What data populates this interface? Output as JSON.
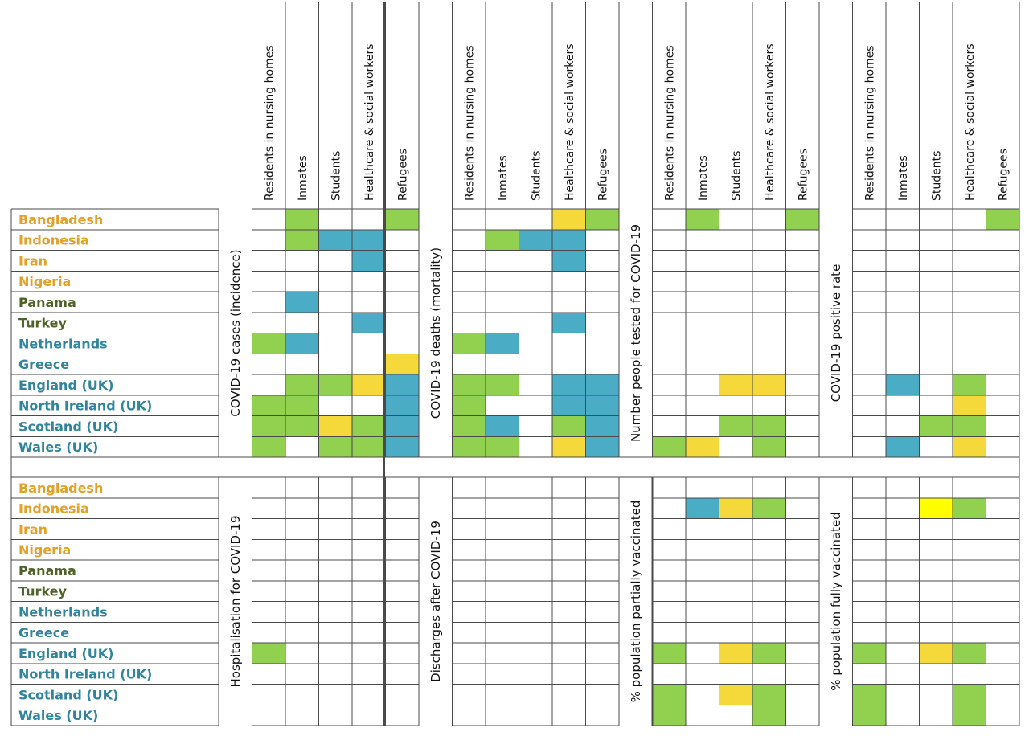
{
  "colors": {
    "green": "#92d050",
    "blue": "#4bacc6",
    "yellow": "#f5d93b",
    "bright_yellow": "#ffff00",
    "orange_text": "#e2a12a",
    "darkgreen_text": "#4f6228",
    "teal_text": "#31849b",
    "grid": "#4a4a4a"
  },
  "chart_data": {
    "type": "heatmap",
    "columns": [
      "Residents in nursing homes",
      "Inmates",
      "Students",
      "Healthcare &  social workers",
      "Refugees"
    ],
    "countries": [
      {
        "name": "Bangladesh",
        "color": "orange_text"
      },
      {
        "name": "Indonesia",
        "color": "orange_text"
      },
      {
        "name": "Iran",
        "color": "orange_text"
      },
      {
        "name": "Nigeria",
        "color": "orange_text"
      },
      {
        "name": "Panama",
        "color": "darkgreen_text"
      },
      {
        "name": "Turkey",
        "color": "darkgreen_text"
      },
      {
        "name": "Netherlands",
        "color": "teal_text"
      },
      {
        "name": "Greece",
        "color": "teal_text"
      },
      {
        "name": "England (UK)",
        "color": "teal_text"
      },
      {
        "name": "North Ireland (UK)",
        "color": "teal_text"
      },
      {
        "name": "Scotland (UK)",
        "color": "teal_text"
      },
      {
        "name": "Wales (UK)",
        "color": "teal_text"
      }
    ],
    "legend_codes": {
      "G": "green",
      "B": "blue",
      "Y": "yellow",
      "V": "bright_yellow",
      ".": "none"
    },
    "panels": [
      {
        "metrics": [
          {
            "label": "COVID-19 cases (incidence)",
            "rows": [
              ".G..G",
              ".GBB.",
              "...B.",
              ".....",
              ".B...",
              "...B.",
              "GB...",
              "....Y",
              ".GGYB",
              "GG..B",
              "GGYGB",
              "G.GGB"
            ]
          },
          {
            "label": "COVID-19 deaths (mortality)",
            "rows": [
              "...YG",
              ".GBB.",
              "...B.",
              ".....",
              ".....",
              "...B.",
              "GB...",
              ".....",
              "GG.BB",
              "G..BB",
              "GB.GB",
              "GG.YB"
            ]
          },
          {
            "label": "Number people tested for COVID-19",
            "rows": [
              ".G..G",
              ".....",
              ".....",
              ".....",
              ".....",
              ".....",
              ".....",
              ".....",
              "..YY.",
              ".....",
              "..GG.",
              "GY.G."
            ]
          },
          {
            "label": "COVID-19 positive rate",
            "rows": [
              "....G",
              ".....",
              ".....",
              ".....",
              ".....",
              ".....",
              ".....",
              ".....",
              ".B.G.",
              "...Y.",
              "..GG.",
              ".B.Y."
            ]
          }
        ]
      },
      {
        "metrics": [
          {
            "label": "Hospitalisation for COVID-19",
            "rows": [
              ".....",
              ".....",
              ".....",
              ".....",
              ".....",
              ".....",
              ".....",
              ".....",
              "G....",
              ".....",
              ".....",
              "....."
            ]
          },
          {
            "label": "Discharges after COVID-19",
            "rows": [
              ".....",
              ".....",
              ".....",
              ".....",
              ".....",
              ".....",
              ".....",
              ".....",
              ".....",
              ".....",
              ".....",
              "....."
            ]
          },
          {
            "label": "% population partially vaccinated",
            "rows": [
              ".....",
              ".BYG.",
              ".....",
              ".....",
              ".....",
              ".....",
              ".....",
              ".....",
              "G.YG.",
              ".....",
              "G.YG.",
              "G..G."
            ]
          },
          {
            "label": "% population fully vaccinated",
            "rows": [
              ".....",
              "..VG.",
              ".....",
              ".....",
              ".....",
              ".....",
              ".....",
              ".....",
              "G.YG.",
              ".....",
              "G..G.",
              "G..G."
            ]
          }
        ]
      }
    ]
  }
}
